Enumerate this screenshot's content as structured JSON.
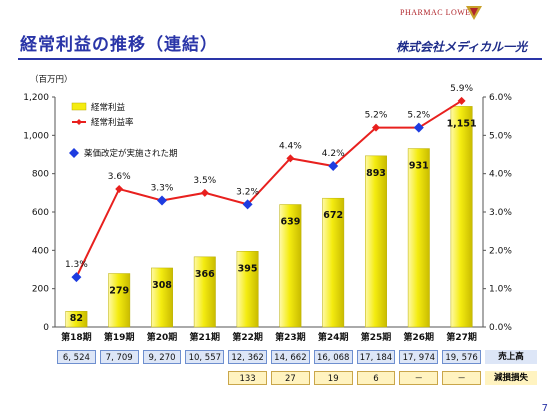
{
  "slide": {
    "title": "経常利益の推移（連結）",
    "brand_logo_text": "PHARMAC LOWER",
    "brand_name": "株式会社メディカル一光",
    "page_number": "7"
  },
  "chart_data": {
    "type": "bar",
    "unit_label": "（百万円）",
    "categories": [
      "第18期",
      "第19期",
      "第20期",
      "第21期",
      "第22期",
      "第23期",
      "第24期",
      "第25期",
      "第26期",
      "第27期"
    ],
    "series": [
      {
        "name": "経常利益",
        "kind": "bar",
        "axis": "left",
        "color": "#f4ec10",
        "values": [
          82,
          279,
          308,
          366,
          395,
          639,
          672,
          893,
          931,
          1151
        ],
        "labels": [
          "82",
          "279",
          "308",
          "366",
          "395",
          "639",
          "672",
          "893",
          "931",
          "1,151"
        ]
      },
      {
        "name": "経常利益率",
        "kind": "line",
        "axis": "right",
        "color": "#e8201e",
        "values": [
          1.3,
          3.6,
          3.3,
          3.5,
          3.2,
          4.4,
          4.2,
          5.2,
          5.2,
          5.9
        ],
        "labels": [
          "1.3%",
          "3.6%",
          "3.3%",
          "3.5%",
          "3.2%",
          "4.4%",
          "4.2%",
          "5.2%",
          "5.2%",
          "5.9%"
        ],
        "blue_marker_indices": [
          0,
          2,
          4,
          6,
          8
        ]
      }
    ],
    "left_axis": {
      "ylim": [
        0,
        1200
      ],
      "ticks": [
        0,
        200,
        400,
        600,
        800,
        1000,
        1200
      ],
      "tick_labels": [
        "0",
        "200",
        "400",
        "600",
        "800",
        "1,000",
        "1,200"
      ]
    },
    "right_axis": {
      "ylim": [
        0,
        6
      ],
      "ticks": [
        0,
        1,
        2,
        3,
        4,
        5,
        6
      ],
      "tick_labels": [
        "0.0%",
        "1.0%",
        "2.0%",
        "3.0%",
        "4.0%",
        "5.0%",
        "6.0%"
      ]
    },
    "legend": {
      "placement": "top-left",
      "entries": [
        "経常利益",
        "経常利益率",
        "薬価改定が実施された期"
      ]
    },
    "grid": false,
    "colors": {
      "bar": "#f4ec10",
      "line": "#e8201e",
      "revision_marker": "#1e3ce0"
    }
  },
  "table": {
    "sales_label": "売上高",
    "sales": [
      "6, 524",
      "7, 709",
      "9, 270",
      "10, 557",
      "12, 362",
      "14, 662",
      "16, 068",
      "17, 184",
      "17, 974",
      "19, 576"
    ],
    "impairment_label": "減損損失",
    "impairment_start_index": 4,
    "impairment": [
      "133",
      "27",
      "19",
      "6",
      "－",
      "－"
    ]
  }
}
